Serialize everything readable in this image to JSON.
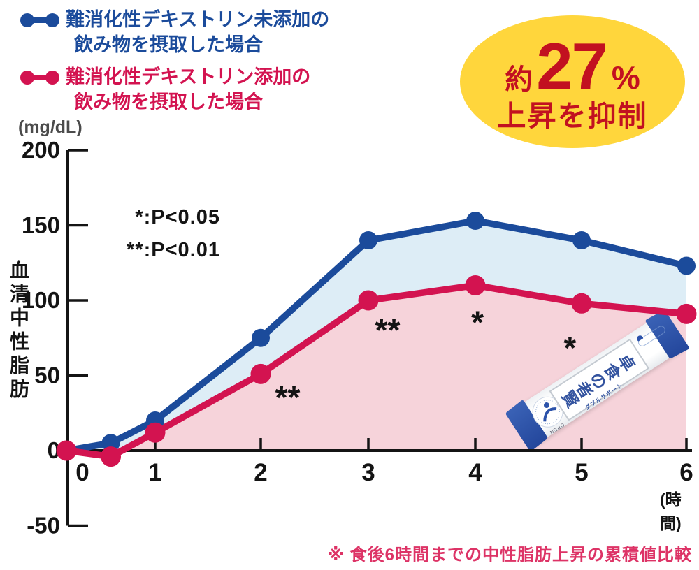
{
  "legend": {
    "series": [
      {
        "label_line1": "難消化性デキストリン未添加の",
        "label_line2": "飲み物を摂取した場合",
        "color": "#1b4b9b"
      },
      {
        "label_line1": "難消化性デキストリン添加の",
        "label_line2": "飲み物を摂取した場合",
        "color": "#d31350"
      }
    ]
  },
  "badge": {
    "prefix": "約",
    "percent": "27",
    "unit": "%",
    "line2": "上昇を抑制",
    "bg_color": "#ffd63c",
    "text_color": "#c21120"
  },
  "chart_data": {
    "type": "line",
    "x": [
      0,
      0.5,
      1,
      2,
      3,
      4,
      5,
      6
    ],
    "series": [
      {
        "name": "難消化性デキストリン未添加の飲み物を摂取した場合",
        "color": "#1b4b9b",
        "fill": "#ddedf6",
        "values": [
          0,
          5,
          20,
          75,
          140,
          153,
          140,
          123
        ]
      },
      {
        "name": "難消化性デキストリン添加の飲み物を摂取した場合",
        "color": "#d31350",
        "fill": "#f6d3da",
        "values": [
          0,
          -4,
          12,
          51,
          100,
          110,
          98,
          91
        ]
      }
    ],
    "unit_label": "(mg/dL)",
    "y_axis_title": "血清中性脂肪",
    "x_axis_unit": "(時間)",
    "y_ticks": [
      200,
      150,
      100,
      50,
      0,
      -50
    ],
    "x_ticks": [
      0,
      1,
      2,
      3,
      4,
      5,
      6
    ],
    "ylim": [
      -50,
      200
    ],
    "xlim": [
      0,
      6
    ],
    "p_notes": [
      "*:P<0.05",
      "**:P<0.01"
    ],
    "annotations": [
      {
        "text": "**",
        "x": 2.25,
        "y": 40
      },
      {
        "text": "**",
        "x": 3.18,
        "y": 85
      },
      {
        "text": "*",
        "x": 4.02,
        "y": 90
      },
      {
        "text": "*",
        "x": 4.89,
        "y": 73
      }
    ]
  },
  "footnote": {
    "text": "※ 食後6時間までの中性脂肪上昇の累積値比較",
    "color": "#dd3366"
  },
  "product": {
    "name": "賢者の食卓",
    "subtitle": "ダブルサポート",
    "open_text": "OPEN"
  }
}
